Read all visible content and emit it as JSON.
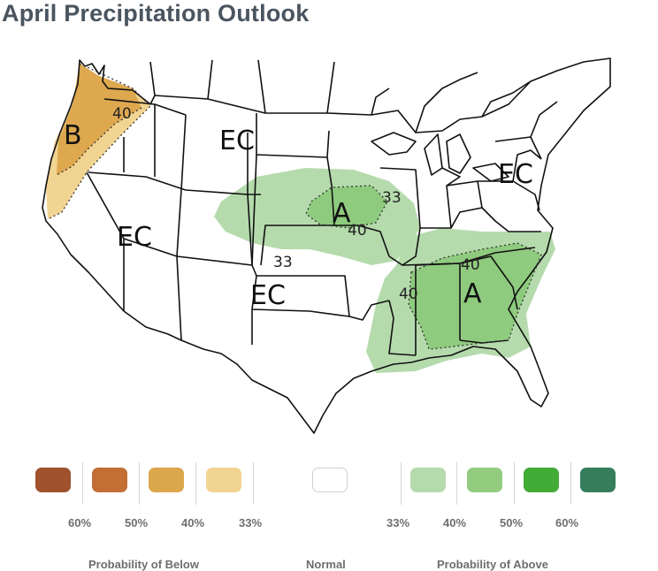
{
  "title": "April Precipitation Outlook",
  "map": {
    "region_labels": [
      "EC",
      "EC",
      "EC",
      "EC",
      "EC"
    ],
    "category_labels": {
      "below": "B",
      "above_central": "A",
      "above_southeast": "A"
    },
    "contour_labels": {
      "nw_40": "40",
      "central_33_a": "33",
      "central_40": "40",
      "central_33_b": "33",
      "se_40_a": "40",
      "se_40_b": "40"
    },
    "colors": {
      "below_33": "#f2d492",
      "below_40": "#dea84f",
      "above_33": "#b5dbad",
      "above_40": "#8fcb7e",
      "boundary": "#111111"
    }
  },
  "legend": {
    "swatches": [
      {
        "color": "#a0522d"
      },
      {
        "color": "#c36e34"
      },
      {
        "color": "#dca64d"
      },
      {
        "color": "#f2d492"
      },
      {
        "color": "#ffffff"
      },
      {
        "color": "#b5dbad"
      },
      {
        "color": "#93cc7f"
      },
      {
        "color": "#43ac36"
      },
      {
        "color": "#367e5b"
      }
    ],
    "below_percentages": [
      "60%",
      "50%",
      "40%",
      "33%"
    ],
    "above_percentages": [
      "33%",
      "40%",
      "50%",
      "60%"
    ],
    "categories": {
      "below": "Probability of Below",
      "normal": "Normal",
      "above": "Probability of Above"
    }
  }
}
